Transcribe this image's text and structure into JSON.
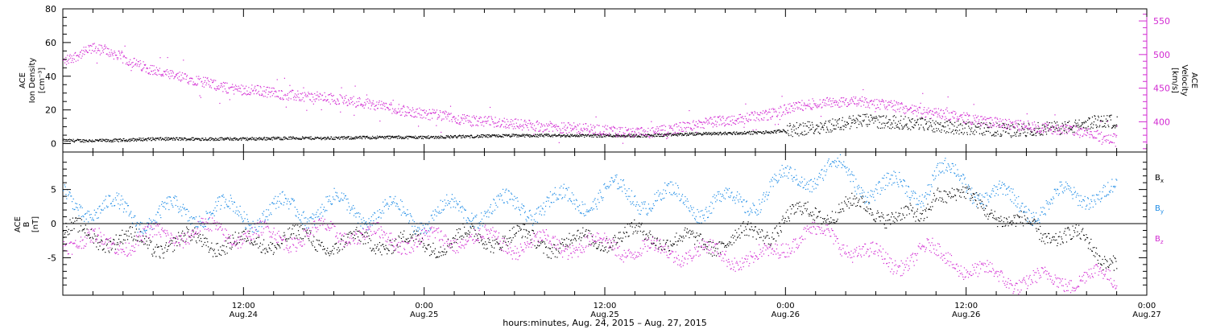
{
  "figure": {
    "xlabel": "hours:minutes, Aug. 24, 2015 – Aug. 27, 2015",
    "xticks": [
      {
        "h": 12,
        "time": "12:00",
        "day": "Aug.24"
      },
      {
        "h": 24,
        "time": "0:00",
        "day": "Aug.25"
      },
      {
        "h": 36,
        "time": "12:00",
        "day": "Aug.25"
      },
      {
        "h": 48,
        "time": "0:00",
        "day": "Aug.26"
      },
      {
        "h": 60,
        "time": "12:00",
        "day": "Aug.26"
      },
      {
        "h": 72,
        "time": "0:00",
        "day": "Aug.27"
      }
    ],
    "xlim_hours": [
      0,
      72
    ]
  },
  "colors": {
    "density": "#000000",
    "velocity": "#d22ad2",
    "bx": "#000000",
    "by": "#1e8ce6",
    "bz": "#d22ad2",
    "axis": "#000000"
  },
  "chart_data": [
    {
      "type": "scatter",
      "panel": "top",
      "ylabel_left": [
        "ACE",
        "Ion Density",
        "[cm⁻³]"
      ],
      "ylabel_right": [
        "ACE",
        "Velocity",
        "[km/s]"
      ],
      "ylim_left": [
        -5,
        80
      ],
      "ylim_right": [
        355,
        568
      ],
      "yticks_left": [
        0,
        20,
        40,
        60,
        80
      ],
      "yticks_right": [
        400,
        450,
        500,
        550
      ],
      "series": [
        {
          "key": "density",
          "axis": "left",
          "x": [
            0,
            3,
            6,
            9,
            12,
            15,
            18,
            21,
            24,
            27,
            30,
            33,
            36,
            39,
            42,
            45,
            47,
            49,
            51,
            53,
            55,
            57,
            59,
            61,
            63,
            65,
            67,
            68,
            69,
            70
          ],
          "y": [
            2,
            2,
            3,
            3,
            3,
            3.5,
            3.5,
            4,
            4,
            4.5,
            5,
            5,
            5,
            5,
            6,
            6.5,
            7,
            9,
            11,
            14,
            13,
            12,
            10,
            9,
            8,
            9,
            10,
            12,
            14,
            13
          ]
        },
        {
          "key": "velocity",
          "axis": "right",
          "x": [
            0,
            2,
            3,
            5,
            7,
            9,
            11,
            13,
            15,
            17,
            19,
            21,
            23,
            25,
            27,
            29,
            31,
            33,
            35,
            37,
            39,
            41,
            43,
            45,
            47,
            49,
            51,
            53,
            55,
            57,
            59,
            61,
            63,
            65,
            67,
            68,
            69,
            70
          ],
          "y": [
            490,
            510,
            505,
            485,
            470,
            462,
            450,
            447,
            440,
            437,
            432,
            425,
            415,
            410,
            402,
            400,
            395,
            392,
            390,
            385,
            384,
            392,
            400,
            405,
            412,
            425,
            430,
            430,
            425,
            415,
            410,
            402,
            396,
            392,
            388,
            383,
            378,
            375
          ]
        }
      ]
    },
    {
      "type": "scatter",
      "panel": "bottom",
      "ylabel_left": [
        "ACE",
        "B",
        "[nT]"
      ],
      "ylim": [
        -10.5,
        10.5
      ],
      "yticks": [
        -5,
        0,
        5
      ],
      "zero_line": true,
      "series": [
        {
          "key": "bx",
          "name": "B",
          "sub": "x",
          "x": [
            0,
            3,
            6,
            9,
            12,
            15,
            18,
            21,
            24,
            27,
            30,
            33,
            36,
            39,
            42,
            45,
            47,
            48,
            50,
            52,
            54,
            56,
            57,
            58,
            60,
            62,
            63,
            65,
            67,
            68,
            69,
            70
          ],
          "y": [
            -1,
            -2,
            -3,
            -2.5,
            -3,
            -2,
            -3,
            -2.5,
            -3,
            -2,
            -2,
            -3,
            -2,
            -1.5,
            -3,
            -2,
            -1,
            1,
            1.5,
            2.5,
            2,
            1,
            0,
            5.5,
            3.5,
            2,
            0,
            -1,
            -2,
            -3,
            -4.5,
            -5
          ]
        },
        {
          "key": "by",
          "name": "B",
          "sub": "y",
          "x": [
            0,
            3,
            6,
            9,
            12,
            15,
            18,
            21,
            24,
            27,
            30,
            33,
            36,
            39,
            42,
            45,
            47,
            49,
            51,
            53,
            55,
            57,
            58,
            60,
            62,
            63,
            65,
            67,
            68,
            69,
            70
          ],
          "y": [
            3.5,
            2,
            1,
            2,
            1.5,
            2,
            2.5,
            1.5,
            1,
            2,
            2.5,
            3,
            4.5,
            4,
            3,
            3,
            5,
            7,
            8,
            6,
            5,
            5,
            7.5,
            6,
            4,
            3,
            2.5,
            4,
            5,
            4.5,
            4
          ]
        },
        {
          "key": "bz",
          "name": "B",
          "sub": "z",
          "x": [
            0,
            3,
            6,
            9,
            12,
            15,
            18,
            21,
            24,
            27,
            30,
            33,
            36,
            39,
            42,
            45,
            47,
            49,
            51,
            53,
            55,
            57,
            59,
            61,
            63,
            65,
            67,
            68,
            69,
            70
          ],
          "y": [
            -2,
            -3,
            -2,
            -1,
            -1.5,
            -2,
            -1,
            -2,
            -2.5,
            -2,
            -3,
            -3,
            -3,
            -4,
            -4,
            -5,
            -5,
            -1,
            -2,
            -4,
            -6,
            -4,
            -5,
            -7.5,
            -8,
            -8.5,
            -8,
            -7.5,
            -8,
            -8.5
          ]
        }
      ]
    }
  ]
}
